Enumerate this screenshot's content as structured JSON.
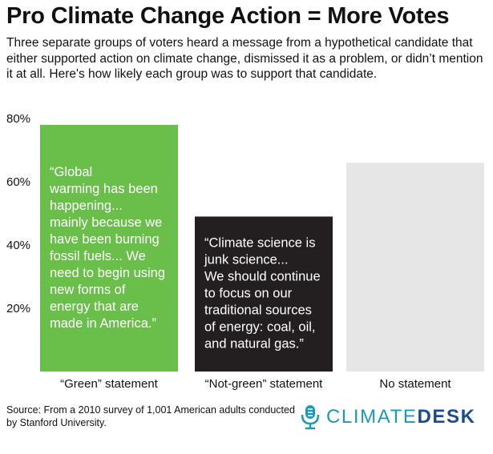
{
  "title": "Pro Climate Change Action = More Votes",
  "subtitle": "Three separate groups of voters heard a message from a hypothetical candidate that either supported action on climate change, dismissed it as a problem, or didn’t mention it at all. Here's how likely each group was to support that candidate.",
  "chart_data": {
    "type": "bar",
    "categories": [
      "“Green” statement",
      "“Not-green” statement",
      "No statement"
    ],
    "values": [
      78,
      49,
      66
    ],
    "yticks": [
      "20%",
      "40%",
      "60%",
      "80%"
    ],
    "ylim": [
      0,
      80
    ],
    "colors": [
      "#6abf4b",
      "#231f20",
      "#e6e6e6"
    ],
    "quotes": [
      [
        "“Global",
        "warming has been",
        "happening...",
        "mainly because we",
        "have been burning",
        "fossil fuels... We",
        "need to begin using",
        "new forms of",
        "energy that are",
        "made in America.”"
      ],
      [
        "“Climate science is",
        "junk science...",
        "We should continue",
        "to focus on our",
        "traditional sources",
        "of energy: coal, oil,",
        "and natural gas.”"
      ],
      []
    ],
    "quote_colors": [
      "#ffffff",
      "#ffffff",
      "#111111"
    ],
    "grid": false
  },
  "source": "Source: From a 2010 survey of 1,001 American adults conducted by Stanford University.",
  "logo": {
    "part1": "CLIMATE",
    "part2": "DESK",
    "icon": "microphone-icon",
    "colors": [
      "#1b99b8",
      "#1b4c8f"
    ]
  }
}
